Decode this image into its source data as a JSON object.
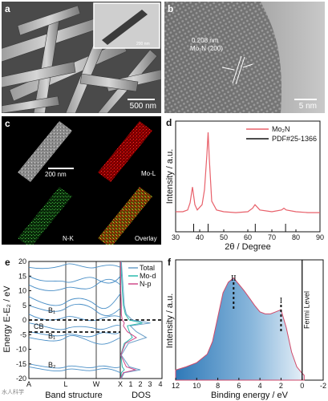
{
  "panel_a": {
    "label": "a",
    "scale_bar": "500 nm",
    "inset_scale_bar": "200 nm"
  },
  "panel_b": {
    "label": "b",
    "d_spacing": "0.208 nm",
    "plane": "Mo₂N (200)",
    "scale_bar": "5 nm"
  },
  "panel_c": {
    "label": "c",
    "scale_bar": "200 nm",
    "tiles": [
      "",
      "Mo-L",
      "N-K",
      "Overlay"
    ]
  },
  "panel_d": {
    "label": "d",
    "xlabel": "2θ / Degree",
    "ylabel": "Intensity / a.u.",
    "legend": [
      "Mo₂N",
      "PDF#25-1366"
    ],
    "xticks": [
      "30",
      "40",
      "50",
      "60",
      "70",
      "80",
      "90"
    ]
  },
  "panel_e": {
    "label": "e",
    "ylabel": "Energy E-E₂ / eV",
    "xlabel_band": "Band structure",
    "xlabel_dos": "DOS",
    "kpoints": [
      "A",
      "L",
      "W",
      "X"
    ],
    "dos_ticks": [
      "1",
      "2",
      "3",
      "4"
    ],
    "yticks": [
      "20",
      "15",
      "10",
      "5",
      "0",
      "-5",
      "-10",
      "-15",
      "-20"
    ],
    "legend": [
      "Total",
      "Mo-d",
      "N-p"
    ],
    "annotations": [
      "B₁",
      "CB",
      "B₁",
      "B₂"
    ]
  },
  "panel_f": {
    "label": "f",
    "xlabel": "Binding energy / eV",
    "ylabel": "Intensity / a.u.",
    "xticks": [
      "12",
      "10",
      "8",
      "6",
      "4",
      "2",
      "0",
      "-2"
    ],
    "peaks": [
      "II",
      "I"
    ],
    "fermi_label": "Fermi Level"
  },
  "watermark": "水人科学",
  "chart_data": [
    {
      "type": "line",
      "panel": "d",
      "xlabel": "2θ / Degree",
      "ylabel": "Intensity / a.u.",
      "xlim": [
        30,
        90
      ],
      "series": [
        {
          "name": "Mo₂N",
          "color": "#e8606a",
          "x": [
            30,
            33,
            35,
            36,
            37,
            38,
            39,
            41,
            42,
            43,
            43.5,
            44,
            45,
            47,
            50,
            55,
            60,
            62,
            63,
            65,
            70,
            74,
            75,
            76,
            80,
            85,
            90
          ],
          "y": [
            0.1,
            0.1,
            0.12,
            0.2,
            0.38,
            0.18,
            0.12,
            0.18,
            0.35,
            0.75,
            1.0,
            0.7,
            0.22,
            0.12,
            0.1,
            0.09,
            0.1,
            0.14,
            0.18,
            0.12,
            0.1,
            0.12,
            0.14,
            0.12,
            0.1,
            0.09,
            0.09
          ]
        },
        {
          "name": "PDF#25-1366",
          "color": "#111111",
          "x": [
            37.5,
            43.5,
            63.1,
            75.7
          ],
          "y": [
            1,
            1,
            1,
            1
          ]
        }
      ]
    },
    {
      "type": "line",
      "panel": "e",
      "xlabel": "Band structure",
      "ylabel": "Energy E-E₂ / eV",
      "ylim": [
        -20,
        20
      ],
      "categories": [
        "A",
        "L",
        "W",
        "X"
      ],
      "series": [
        {
          "name": "Total",
          "color": "#6b9fc8"
        },
        {
          "name": "Mo-d",
          "color": "#2bbbad"
        },
        {
          "name": "N-p",
          "color": "#d04a8a"
        }
      ]
    },
    {
      "type": "area",
      "panel": "f",
      "xlabel": "Binding energy / eV",
      "ylabel": "Intensity / a.u.",
      "xlim": [
        12,
        -2
      ],
      "series": [
        {
          "name": "",
          "color": "#3d86c0",
          "x": [
            12,
            11,
            10,
            9,
            8.5,
            8,
            7.5,
            7,
            6.5,
            6,
            5.5,
            5,
            4.5,
            4,
            3.5,
            3,
            2.5,
            2,
            1.5,
            1,
            0.5,
            0,
            -0.2
          ],
          "y": [
            0.05,
            0.08,
            0.12,
            0.2,
            0.32,
            0.55,
            0.78,
            0.88,
            0.92,
            0.86,
            0.8,
            0.73,
            0.66,
            0.6,
            0.58,
            0.58,
            0.6,
            0.62,
            0.45,
            0.22,
            0.08,
            0.02,
            0.0
          ]
        }
      ],
      "peaks": [
        {
          "label": "II",
          "x": 6.5
        },
        {
          "label": "I",
          "x": 2.0
        }
      ]
    }
  ]
}
